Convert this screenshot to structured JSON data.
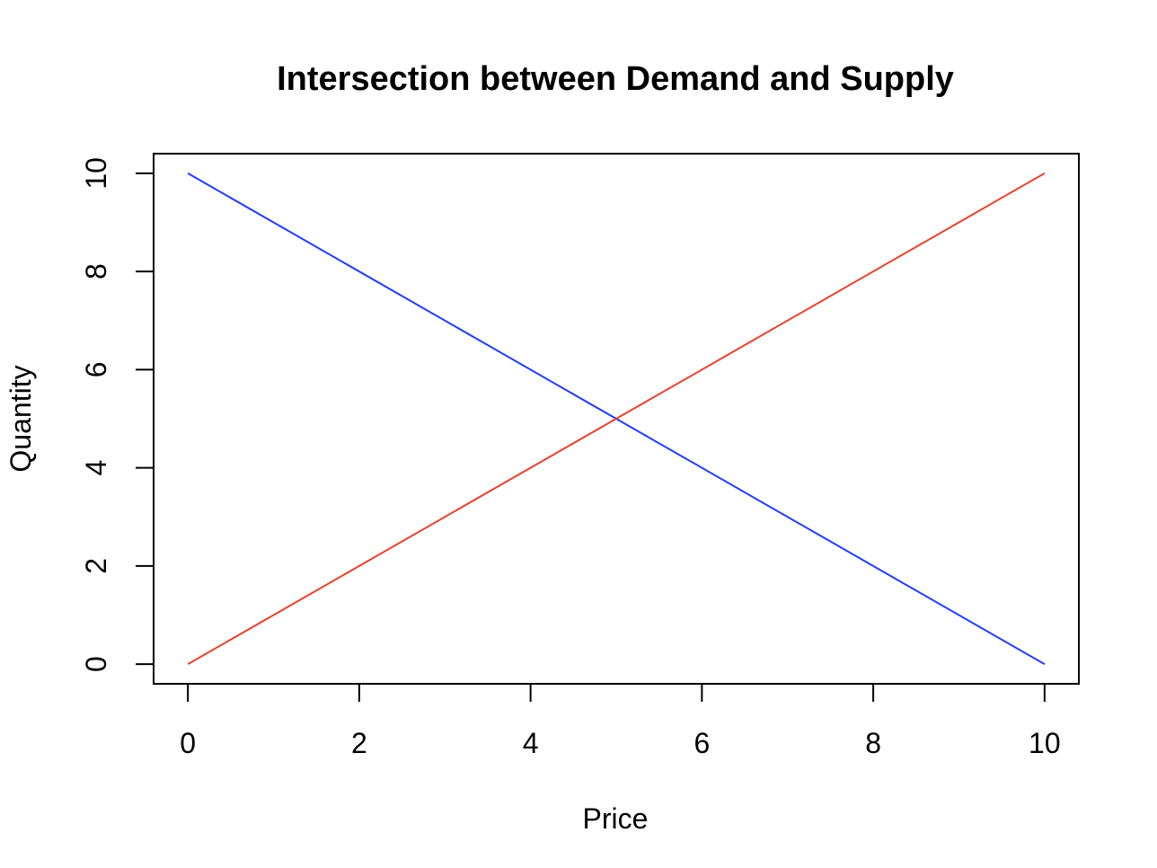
{
  "chart_data": {
    "type": "line",
    "title": "Intersection between Demand and Supply",
    "xlabel": "Price",
    "ylabel": "Quantity",
    "xlim": [
      -0.4,
      10.4
    ],
    "ylim": [
      -0.4,
      10.4
    ],
    "x_ticks": [
      0,
      2,
      4,
      6,
      8,
      10
    ],
    "y_ticks": [
      0,
      2,
      4,
      6,
      8,
      10
    ],
    "x_tick_labels": [
      "0",
      "2",
      "4",
      "6",
      "8",
      "10"
    ],
    "y_tick_labels": [
      "0",
      "2",
      "4",
      "6",
      "8",
      "10"
    ],
    "grid": false,
    "series": [
      {
        "x": [
          0,
          10
        ],
        "y": [
          10,
          0
        ],
        "color": "#1f3bff"
      },
      {
        "x": [
          0,
          10
        ],
        "y": [
          0,
          10
        ],
        "color": "#e8412c"
      }
    ]
  }
}
